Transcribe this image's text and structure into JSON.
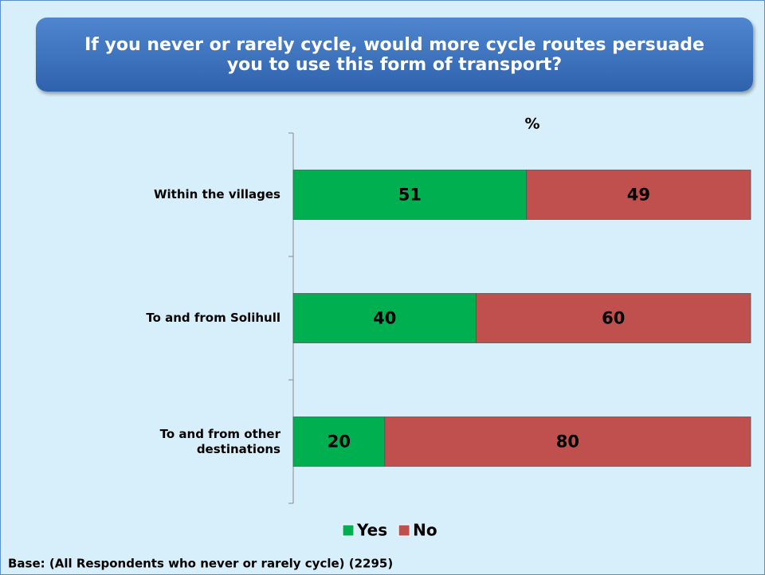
{
  "chart_data": {
    "type": "stacked_bar_horizontal",
    "title": "If you never or rarely cycle, would more cycle routes persuade you to use this form of transport?",
    "axis_label": "%",
    "categories": [
      "Within the villages",
      "To and from Solihull",
      "To and from other destinations"
    ],
    "series": [
      {
        "name": "Yes",
        "color": "#00b050",
        "values": [
          51,
          40,
          20
        ]
      },
      {
        "name": "No",
        "color": "#c0504d",
        "values": [
          49,
          60,
          80
        ]
      }
    ],
    "xlim": [
      0,
      100
    ],
    "legend": "bottom",
    "footnote": "Base: (All Respondents who never or rarely cycle) (2295)"
  }
}
